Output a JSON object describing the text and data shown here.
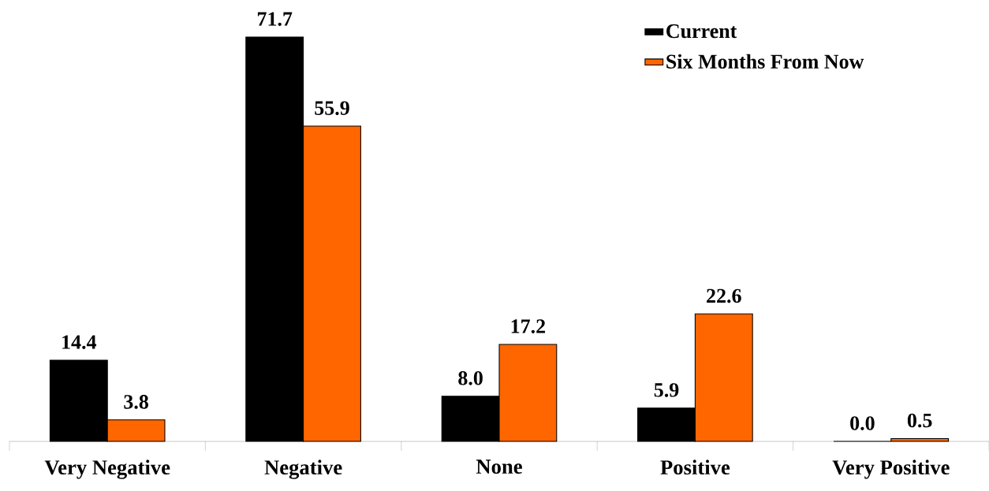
{
  "chart_data": {
    "type": "bar",
    "categories": [
      "Very Negative",
      "Negative",
      "None",
      "Positive",
      "Very Positive"
    ],
    "series": [
      {
        "name": "Current",
        "color": "#000000",
        "values": [
          14.4,
          71.7,
          8.0,
          5.9,
          0.0
        ],
        "value_labels": [
          "14.4",
          "71.7",
          "8.0",
          "5.9",
          "0.0"
        ]
      },
      {
        "name": "Six Months From Now",
        "color": "#ff6600",
        "values": [
          3.8,
          55.9,
          17.2,
          22.6,
          0.5
        ],
        "value_labels": [
          "3.8",
          "55.9",
          "17.2",
          "22.6",
          "0.5"
        ]
      }
    ],
    "legend": "top right"
  }
}
